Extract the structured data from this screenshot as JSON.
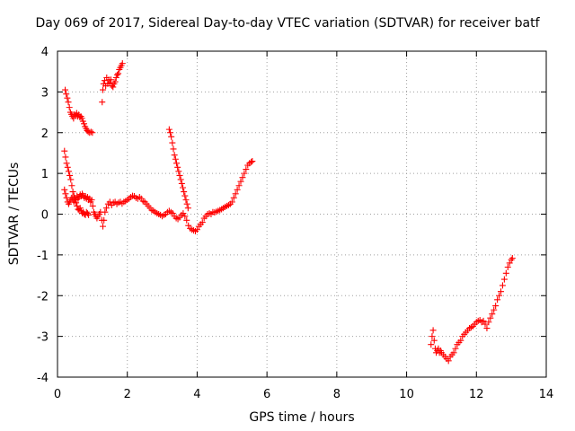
{
  "chart_data": {
    "type": "scatter",
    "title": "Day 069 of 2017, Sidereal Day-to-day VTEC variation (SDTVAR) for receiver batf",
    "xlabel": "GPS time / hours",
    "ylabel": "SDTVAR / TECUs",
    "xlim": [
      0,
      14
    ],
    "ylim": [
      -4,
      4
    ],
    "xticks": [
      "0",
      "2",
      "4",
      "6",
      "8",
      "10",
      "12",
      "14"
    ],
    "yticks": [
      "4",
      "3",
      "2",
      "1",
      "0",
      "-1",
      "-2",
      "-3",
      "-4"
    ],
    "grid": true,
    "marker": "+",
    "color": "#ff0000",
    "series": [
      {
        "points": [
          [
            0.22,
            3.05
          ],
          [
            0.25,
            2.95
          ],
          [
            0.28,
            2.85
          ],
          [
            0.31,
            2.75
          ],
          [
            0.34,
            2.62
          ],
          [
            0.37,
            2.5
          ],
          [
            0.4,
            2.45
          ],
          [
            0.43,
            2.4
          ],
          [
            0.46,
            2.35
          ],
          [
            0.49,
            2.45
          ],
          [
            0.52,
            2.42
          ],
          [
            0.55,
            2.48
          ],
          [
            0.58,
            2.4
          ],
          [
            0.61,
            2.44
          ],
          [
            0.64,
            2.38
          ],
          [
            0.67,
            2.4
          ],
          [
            0.7,
            2.35
          ],
          [
            0.73,
            2.28
          ],
          [
            0.76,
            2.22
          ],
          [
            0.79,
            2.15
          ],
          [
            0.82,
            2.1
          ],
          [
            0.85,
            2.05
          ],
          [
            0.88,
            2.02
          ],
          [
            0.92,
            2.0
          ],
          [
            0.96,
            2.02
          ],
          [
            1.0,
            2.0
          ]
        ]
      },
      {
        "points": [
          [
            1.28,
            2.75
          ],
          [
            1.3,
            3.05
          ],
          [
            1.32,
            3.2
          ],
          [
            1.35,
            3.28
          ],
          [
            1.38,
            3.15
          ],
          [
            1.41,
            3.35
          ],
          [
            1.44,
            3.2
          ],
          [
            1.47,
            3.3
          ],
          [
            1.5,
            3.22
          ],
          [
            1.53,
            3.3
          ],
          [
            1.56,
            3.15
          ],
          [
            1.59,
            3.12
          ],
          [
            1.62,
            3.2
          ],
          [
            1.65,
            3.25
          ],
          [
            1.68,
            3.35
          ],
          [
            1.71,
            3.42
          ],
          [
            1.74,
            3.45
          ],
          [
            1.77,
            3.55
          ],
          [
            1.8,
            3.6
          ],
          [
            1.83,
            3.65
          ],
          [
            1.86,
            3.7
          ]
        ]
      },
      {
        "points": [
          [
            0.2,
            1.55
          ],
          [
            0.23,
            1.4
          ],
          [
            0.26,
            1.25
          ],
          [
            0.29,
            1.15
          ],
          [
            0.32,
            1.05
          ],
          [
            0.35,
            0.95
          ],
          [
            0.38,
            0.85
          ],
          [
            0.41,
            0.7
          ],
          [
            0.44,
            0.55
          ],
          [
            0.47,
            0.45
          ],
          [
            0.5,
            0.35
          ],
          [
            0.53,
            0.28
          ],
          [
            0.56,
            0.2
          ],
          [
            0.59,
            0.12
          ],
          [
            0.62,
            0.1
          ],
          [
            0.65,
            0.15
          ],
          [
            0.68,
            0.08
          ],
          [
            0.71,
            0.02
          ],
          [
            0.74,
            0.05
          ],
          [
            0.77,
            0.0
          ],
          [
            0.8,
            -0.02
          ],
          [
            0.83,
            0.05
          ],
          [
            0.86,
            0.02
          ],
          [
            0.89,
            -0.02
          ]
        ]
      },
      {
        "points": [
          [
            0.2,
            0.6
          ],
          [
            0.23,
            0.5
          ],
          [
            0.26,
            0.4
          ],
          [
            0.29,
            0.3
          ],
          [
            0.32,
            0.25
          ],
          [
            0.35,
            0.3
          ],
          [
            0.38,
            0.35
          ],
          [
            0.41,
            0.4
          ],
          [
            0.44,
            0.35
          ],
          [
            0.47,
            0.3
          ],
          [
            0.5,
            0.4
          ],
          [
            0.53,
            0.35
          ],
          [
            0.56,
            0.45
          ],
          [
            0.59,
            0.38
          ],
          [
            0.62,
            0.42
          ],
          [
            0.65,
            0.48
          ],
          [
            0.68,
            0.44
          ],
          [
            0.71,
            0.5
          ],
          [
            0.74,
            0.45
          ],
          [
            0.77,
            0.4
          ],
          [
            0.8,
            0.44
          ],
          [
            0.83,
            0.38
          ],
          [
            0.86,
            0.42
          ],
          [
            0.89,
            0.35
          ],
          [
            0.92,
            0.38
          ],
          [
            0.95,
            0.3
          ],
          [
            0.98,
            0.35
          ],
          [
            1.01,
            0.2
          ],
          [
            1.04,
            0.05
          ],
          [
            1.07,
            0.0
          ],
          [
            1.1,
            -0.05
          ],
          [
            1.13,
            -0.1
          ],
          [
            1.16,
            -0.05
          ],
          [
            1.2,
            0.0
          ],
          [
            1.23,
            0.05
          ],
          [
            1.27,
            -0.15
          ],
          [
            1.3,
            -0.3
          ],
          [
            1.33,
            -0.15
          ],
          [
            1.36,
            0.05
          ],
          [
            1.4,
            0.15
          ],
          [
            1.45,
            0.25
          ],
          [
            1.5,
            0.3
          ],
          [
            1.55,
            0.22
          ],
          [
            1.6,
            0.28
          ],
          [
            1.65,
            0.3
          ],
          [
            1.7,
            0.25
          ],
          [
            1.75,
            0.28
          ],
          [
            1.8,
            0.3
          ],
          [
            1.85,
            0.26
          ],
          [
            1.9,
            0.3
          ],
          [
            1.95,
            0.32
          ],
          [
            2.0,
            0.35
          ],
          [
            2.05,
            0.38
          ],
          [
            2.1,
            0.42
          ],
          [
            2.15,
            0.45
          ],
          [
            2.2,
            0.44
          ],
          [
            2.25,
            0.4
          ],
          [
            2.3,
            0.38
          ],
          [
            2.35,
            0.42
          ],
          [
            2.4,
            0.38
          ],
          [
            2.45,
            0.32
          ],
          [
            2.5,
            0.3
          ],
          [
            2.55,
            0.25
          ],
          [
            2.6,
            0.2
          ],
          [
            2.65,
            0.15
          ],
          [
            2.7,
            0.1
          ],
          [
            2.75,
            0.08
          ],
          [
            2.8,
            0.05
          ],
          [
            2.85,
            0.02
          ],
          [
            2.9,
            0.0
          ],
          [
            2.95,
            -0.02
          ],
          [
            3.0,
            -0.05
          ],
          [
            3.05,
            -0.02
          ],
          [
            3.1,
            0.0
          ],
          [
            3.15,
            0.05
          ],
          [
            3.2,
            0.08
          ],
          [
            3.25,
            0.05
          ],
          [
            3.3,
            0.02
          ],
          [
            3.35,
            -0.05
          ],
          [
            3.4,
            -0.1
          ],
          [
            3.45,
            -0.12
          ],
          [
            3.5,
            -0.08
          ],
          [
            3.55,
            -0.02
          ],
          [
            3.6,
            0.02
          ],
          [
            3.65,
            -0.05
          ],
          [
            3.7,
            -0.15
          ],
          [
            3.75,
            -0.28
          ],
          [
            3.8,
            -0.35
          ],
          [
            3.85,
            -0.38
          ],
          [
            3.9,
            -0.4
          ],
          [
            3.95,
            -0.42
          ],
          [
            4.0,
            -0.38
          ],
          [
            4.05,
            -0.3
          ],
          [
            4.1,
            -0.25
          ],
          [
            4.15,
            -0.2
          ],
          [
            4.2,
            -0.1
          ],
          [
            4.25,
            -0.05
          ],
          [
            4.3,
            0.0
          ],
          [
            4.35,
            0.02
          ],
          [
            4.4,
            0.0
          ],
          [
            4.45,
            0.05
          ],
          [
            4.5,
            0.04
          ],
          [
            4.55,
            0.06
          ],
          [
            4.6,
            0.08
          ],
          [
            4.65,
            0.1
          ],
          [
            4.7,
            0.12
          ],
          [
            4.75,
            0.15
          ],
          [
            4.8,
            0.18
          ],
          [
            4.85,
            0.2
          ],
          [
            4.9,
            0.22
          ],
          [
            4.95,
            0.25
          ],
          [
            5.0,
            0.3
          ],
          [
            5.05,
            0.4
          ],
          [
            5.1,
            0.5
          ],
          [
            5.15,
            0.6
          ],
          [
            5.2,
            0.7
          ],
          [
            5.25,
            0.8
          ],
          [
            5.3,
            0.9
          ],
          [
            5.35,
            1.0
          ],
          [
            5.4,
            1.1
          ],
          [
            5.45,
            1.2
          ],
          [
            5.5,
            1.25
          ],
          [
            5.55,
            1.28
          ],
          [
            5.58,
            1.3
          ]
        ]
      },
      {
        "points": [
          [
            3.2,
            2.08
          ],
          [
            3.23,
            2.0
          ],
          [
            3.26,
            1.9
          ],
          [
            3.29,
            1.75
          ],
          [
            3.32,
            1.6
          ],
          [
            3.35,
            1.45
          ],
          [
            3.38,
            1.35
          ],
          [
            3.41,
            1.25
          ],
          [
            3.44,
            1.15
          ],
          [
            3.47,
            1.05
          ],
          [
            3.5,
            0.95
          ],
          [
            3.53,
            0.85
          ],
          [
            3.56,
            0.75
          ],
          [
            3.59,
            0.65
          ],
          [
            3.62,
            0.55
          ],
          [
            3.65,
            0.45
          ],
          [
            3.68,
            0.35
          ],
          [
            3.71,
            0.25
          ],
          [
            3.74,
            0.15
          ]
        ]
      },
      {
        "points": [
          [
            10.7,
            -3.2
          ],
          [
            10.73,
            -3.0
          ],
          [
            10.76,
            -2.85
          ],
          [
            10.79,
            -3.1
          ],
          [
            10.82,
            -3.3
          ],
          [
            10.85,
            -3.4
          ],
          [
            10.88,
            -3.35
          ],
          [
            10.91,
            -3.3
          ],
          [
            10.94,
            -3.4
          ],
          [
            10.97,
            -3.35
          ],
          [
            11.0,
            -3.4
          ],
          [
            11.05,
            -3.45
          ],
          [
            11.1,
            -3.5
          ],
          [
            11.15,
            -3.55
          ],
          [
            11.2,
            -3.6
          ],
          [
            11.25,
            -3.5
          ],
          [
            11.3,
            -3.45
          ],
          [
            11.35,
            -3.4
          ],
          [
            11.4,
            -3.3
          ],
          [
            11.45,
            -3.2
          ],
          [
            11.5,
            -3.15
          ],
          [
            11.55,
            -3.1
          ],
          [
            11.6,
            -3.0
          ],
          [
            11.65,
            -2.95
          ],
          [
            11.7,
            -2.9
          ],
          [
            11.75,
            -2.85
          ],
          [
            11.8,
            -2.8
          ],
          [
            11.85,
            -2.78
          ],
          [
            11.9,
            -2.75
          ],
          [
            11.95,
            -2.7
          ],
          [
            12.0,
            -2.65
          ],
          [
            12.05,
            -2.62
          ],
          [
            12.1,
            -2.6
          ],
          [
            12.15,
            -2.65
          ],
          [
            12.2,
            -2.62
          ],
          [
            12.25,
            -2.7
          ],
          [
            12.3,
            -2.8
          ],
          [
            12.35,
            -2.65
          ],
          [
            12.4,
            -2.55
          ],
          [
            12.45,
            -2.45
          ],
          [
            12.5,
            -2.35
          ],
          [
            12.55,
            -2.25
          ],
          [
            12.6,
            -2.1
          ],
          [
            12.65,
            -2.0
          ],
          [
            12.7,
            -1.9
          ],
          [
            12.75,
            -1.75
          ],
          [
            12.8,
            -1.6
          ],
          [
            12.85,
            -1.45
          ],
          [
            12.9,
            -1.3
          ],
          [
            12.95,
            -1.2
          ],
          [
            13.0,
            -1.12
          ],
          [
            13.03,
            -1.08
          ]
        ]
      }
    ]
  }
}
